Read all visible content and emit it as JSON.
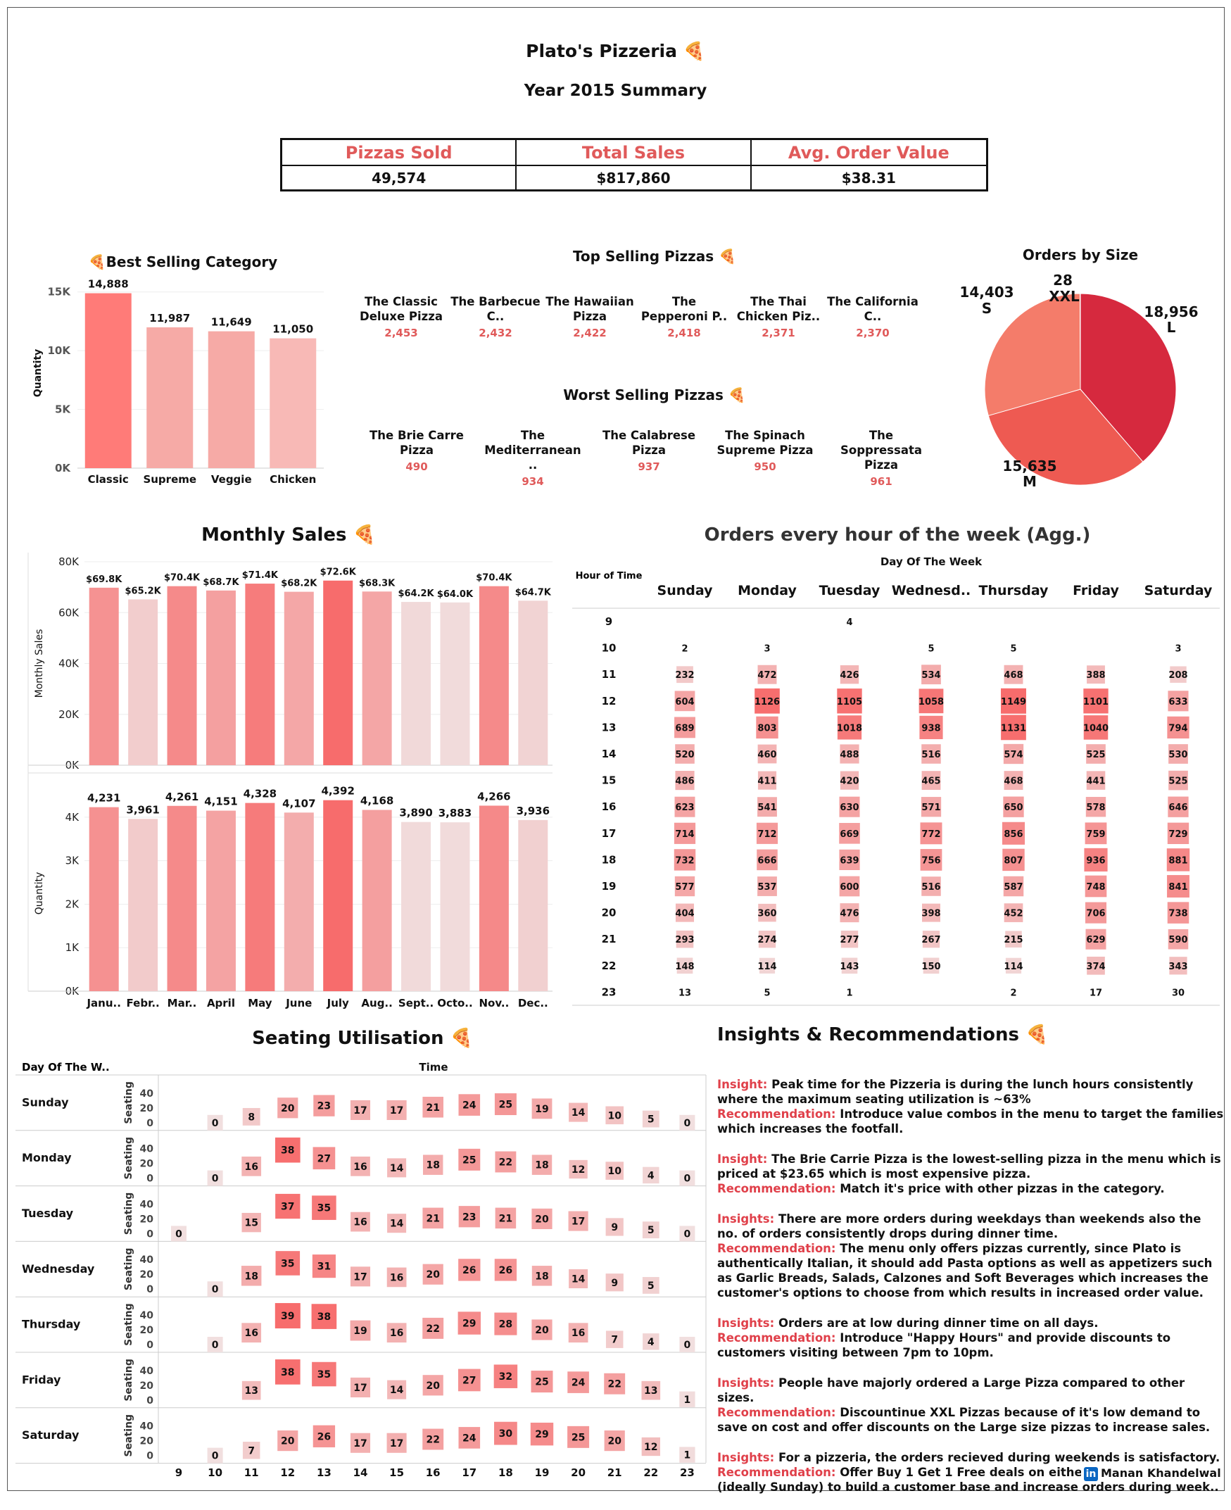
{
  "header": {
    "title": "Plato's Pizzeria 🍕",
    "subtitle": "Year 2015 Summary"
  },
  "kpis": [
    {
      "label": "Pizzas Sold",
      "value": "49,574"
    },
    {
      "label": "Total Sales",
      "value": "$817,860"
    },
    {
      "label": "Avg. Order Value",
      "value": "$38.31"
    }
  ],
  "top_title": "Top Selling Pizzas 🍕",
  "worst_title": "Worst Selling Pizzas 🍕",
  "top_pizzas": [
    {
      "name": "The Classic Deluxe Pizza",
      "value": "2,453"
    },
    {
      "name": "The Barbecue C..",
      "value": "2,432"
    },
    {
      "name": "The Hawaiian Pizza",
      "value": "2,422"
    },
    {
      "name": "The Pepperoni P..",
      "value": "2,418"
    },
    {
      "name": "The Thai Chicken Piz..",
      "value": "2,371"
    },
    {
      "name": "The California C..",
      "value": "2,370"
    }
  ],
  "worst_pizzas": [
    {
      "name": "The Brie Carre Pizza",
      "value": "490"
    },
    {
      "name": "The Mediterranean ..",
      "value": "934"
    },
    {
      "name": "The Calabrese Pizza",
      "value": "937"
    },
    {
      "name": "The Spinach Supreme Pizza",
      "value": "950"
    },
    {
      "name": "The Soppressata Pizza",
      "value": "961"
    }
  ],
  "monthly_title": "Monthly Sales 🍕",
  "heat_title": "Orders every hour of the week (Agg.)",
  "seat_title": "Seating Utilisation 🍕",
  "insights_title": "Insights & Recommendations 🍕",
  "insights": [
    {
      "ik": "Insight:",
      "it": "Peak time for the Pizzeria is during the lunch hours consistently where the maximum seating utilization is ~63%",
      "rk": "Recommendation:",
      "rt": "Introduce value combos in the menu to target the families which increases the footfall."
    },
    {
      "ik": "Insight:",
      "it": "The Brie Carrie Pizza is the lowest-selling pizza in the menu which is priced at $23.65 which is most expensive pizza.",
      "rk": "Recommendation:",
      "rt": "Match it's price with other pizzas in the category."
    },
    {
      "ik": "Insights:",
      "it": "There are more orders during weekdays than weekends also the no. of orders consistently drops during dinner time.",
      "rk": "Recommendation:",
      "rt": "The menu only offers pizzas currently,  since Plato is authentically Italian,  it should add Pasta options as well as appetizers such as Garlic Breads, Salads, Calzones and Soft Beverages which increases the customer's options to choose from which results in increased order value."
    },
    {
      "ik": "Insights:",
      "it": "Orders are at low during dinner time on all days.",
      "rk": "Recommendation:",
      "rt": "Introduce \"Happy Hours\" and provide discounts to customers visiting between 7pm to 10pm."
    },
    {
      "ik": "Insights:",
      "it": "People have majorly ordered a Large Pizza compared to other sizes.",
      "rk": "Recommendation:",
      "rt": "Discountinue XXL Pizzas because of it's low demand to save on cost and offer discounts on the Large size pizzas to increase sales."
    },
    {
      "ik": "Insights:",
      "it": "For a pizzeria, the orders recieved during weekends is satisfactory.",
      "rk": "Recommendation:",
      "rt": "Offer Buy 1 Get 1 Free deals on either of the weekdays (ideally Sunday) to build a customer base and increase orders during week.."
    }
  ],
  "linkedin": {
    "icon": "linkedin-icon",
    "name": "Manan Khandelwal"
  },
  "chart_data": [
    {
      "id": "category",
      "type": "bar",
      "title": "🍕Best Selling Category",
      "ylabel": "Quantity",
      "categories": [
        "Classic",
        "Supreme",
        "Veggie",
        "Chicken"
      ],
      "values": [
        14888,
        11987,
        11649,
        11050
      ],
      "labels": [
        "14,888",
        "11,987",
        "11,649",
        "11,050"
      ],
      "yticks": [
        "0K",
        "5K",
        "10K",
        "15K"
      ],
      "ylim": [
        0,
        16000
      ]
    },
    {
      "id": "size",
      "type": "pie",
      "title": "Orders by Size",
      "slices": [
        {
          "label": "L",
          "value": 18956
        },
        {
          "label": "M",
          "value": 15635
        },
        {
          "label": "S",
          "value": 14403
        },
        {
          "label": "XXL",
          "value": 28
        }
      ],
      "value_labels": [
        "18,956",
        "15,635",
        "14,403",
        "28"
      ]
    },
    {
      "id": "monthly_sales",
      "type": "bar",
      "ylabel": "Monthly Sales",
      "categories": [
        "Janu..",
        "Febr..",
        "Mar..",
        "April",
        "May",
        "June",
        "July",
        "Aug..",
        "Sept..",
        "Octo..",
        "Nov..",
        "Dec.."
      ],
      "values": [
        69.8,
        65.2,
        70.4,
        68.7,
        71.4,
        68.2,
        72.6,
        68.3,
        64.2,
        64.0,
        70.4,
        64.7
      ],
      "labels": [
        "$69.8K",
        "$65.2K",
        "$70.4K",
        "$68.7K",
        "$71.4K",
        "$68.2K",
        "$72.6K",
        "$68.3K",
        "$64.2K",
        "$64.0K",
        "$70.4K",
        "$64.7K"
      ],
      "yticks": [
        "0K",
        "20K",
        "40K",
        "60K",
        "80K"
      ],
      "ylim": [
        0,
        80
      ]
    },
    {
      "id": "monthly_qty",
      "type": "bar",
      "ylabel": "Quantity",
      "categories": [
        "Janu..",
        "Febr..",
        "Mar..",
        "April",
        "May",
        "June",
        "July",
        "Aug..",
        "Sept..",
        "Octo..",
        "Nov..",
        "Dec.."
      ],
      "values": [
        4231,
        3961,
        4261,
        4151,
        4328,
        4107,
        4392,
        4168,
        3890,
        3883,
        4266,
        3936
      ],
      "labels": [
        "4,231",
        "3,961",
        "4,261",
        "4,151",
        "4,328",
        "4,107",
        "4,392",
        "4,168",
        "3,890",
        "3,883",
        "4,266",
        "3,936"
      ],
      "yticks": [
        "0K",
        "1K",
        "2K",
        "3K",
        "4K"
      ],
      "ylim": [
        0,
        4500
      ]
    },
    {
      "id": "hourly",
      "type": "heatmap",
      "xlabel": "Day Of The Week",
      "ylabel": "Hour of Time",
      "days": [
        "Sunday",
        "Monday",
        "Tuesday",
        "Wednesd..",
        "Thursday",
        "Friday",
        "Saturday"
      ],
      "hours": [
        9,
        10,
        11,
        12,
        13,
        14,
        15,
        16,
        17,
        18,
        19,
        20,
        21,
        22,
        23
      ],
      "values": [
        [
          null,
          null,
          4,
          null,
          null,
          null,
          null
        ],
        [
          2,
          3,
          null,
          5,
          5,
          null,
          3
        ],
        [
          232,
          472,
          426,
          534,
          468,
          388,
          208
        ],
        [
          604,
          1126,
          1105,
          1058,
          1149,
          1101,
          633
        ],
        [
          689,
          803,
          1018,
          938,
          1131,
          1040,
          794
        ],
        [
          520,
          460,
          488,
          516,
          574,
          525,
          530
        ],
        [
          486,
          411,
          420,
          465,
          468,
          441,
          525
        ],
        [
          623,
          541,
          630,
          571,
          650,
          578,
          646
        ],
        [
          714,
          712,
          669,
          772,
          856,
          759,
          729
        ],
        [
          732,
          666,
          639,
          756,
          807,
          936,
          881
        ],
        [
          577,
          537,
          600,
          516,
          587,
          748,
          841
        ],
        [
          404,
          360,
          476,
          398,
          452,
          706,
          738
        ],
        [
          293,
          274,
          277,
          267,
          215,
          629,
          590
        ],
        [
          148,
          114,
          143,
          150,
          114,
          374,
          343
        ],
        [
          13,
          5,
          1,
          null,
          2,
          17,
          30
        ]
      ]
    },
    {
      "id": "seating",
      "type": "heatmap",
      "xlabel": "Time",
      "row_header": "Day Of The W..",
      "ylabel": "Seating",
      "yticks": [
        "0",
        "20",
        "40"
      ],
      "days": [
        "Sunday",
        "Monday",
        "Tuesday",
        "Wednesday",
        "Thursday",
        "Friday",
        "Saturday"
      ],
      "hours": [
        9,
        10,
        11,
        12,
        13,
        14,
        15,
        16,
        17,
        18,
        19,
        20,
        21,
        22,
        23
      ],
      "values": [
        [
          null,
          0,
          8,
          20,
          23,
          17,
          17,
          21,
          24,
          25,
          19,
          14,
          10,
          5,
          0
        ],
        [
          null,
          0,
          16,
          38,
          27,
          16,
          14,
          18,
          25,
          22,
          18,
          12,
          10,
          4,
          0
        ],
        [
          0,
          null,
          15,
          37,
          35,
          16,
          14,
          21,
          23,
          21,
          20,
          17,
          9,
          5,
          0
        ],
        [
          null,
          0,
          18,
          35,
          31,
          17,
          16,
          20,
          26,
          26,
          18,
          14,
          9,
          5,
          null
        ],
        [
          null,
          0,
          16,
          39,
          38,
          19,
          16,
          22,
          29,
          28,
          20,
          16,
          7,
          4,
          0
        ],
        [
          null,
          null,
          13,
          38,
          35,
          17,
          14,
          20,
          27,
          32,
          25,
          24,
          22,
          13,
          1
        ],
        [
          null,
          0,
          7,
          20,
          26,
          17,
          17,
          22,
          24,
          30,
          29,
          25,
          20,
          12,
          1
        ]
      ]
    }
  ]
}
